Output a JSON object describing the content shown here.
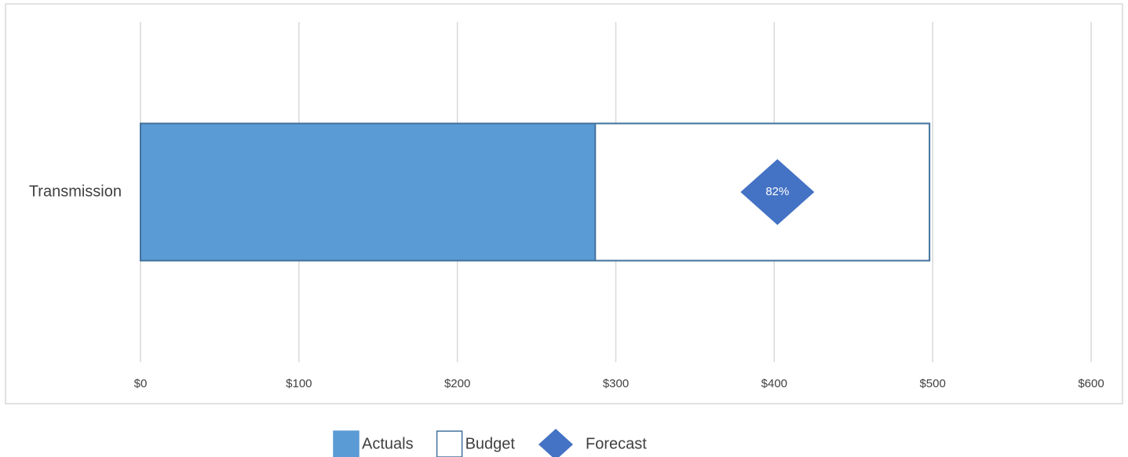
{
  "chart_data": {
    "type": "bullet",
    "categories": [
      "Transmission"
    ],
    "series": [
      {
        "name": "Budget",
        "color": "#ffffff",
        "edge": "#41719c",
        "values": [
          498
        ]
      },
      {
        "name": "Actuals",
        "color": "#5b9bd5",
        "edge": "#41719c",
        "values": [
          287
        ]
      },
      {
        "name": "Forecast",
        "color": "#4472c4",
        "values": [
          402
        ],
        "annotations": [
          "82%"
        ]
      }
    ],
    "legend_order": [
      1,
      0,
      2
    ],
    "xlim": [
      0,
      600
    ],
    "xticks": [
      {
        "value": 0,
        "label": "$0"
      },
      {
        "value": 100,
        "label": "$100"
      },
      {
        "value": 200,
        "label": "$200"
      },
      {
        "value": 300,
        "label": "$300"
      },
      {
        "value": 400,
        "label": "$400"
      },
      {
        "value": 500,
        "label": "$500"
      },
      {
        "value": 600,
        "label": "$600"
      }
    ],
    "grid": true,
    "legend": "bottom"
  }
}
